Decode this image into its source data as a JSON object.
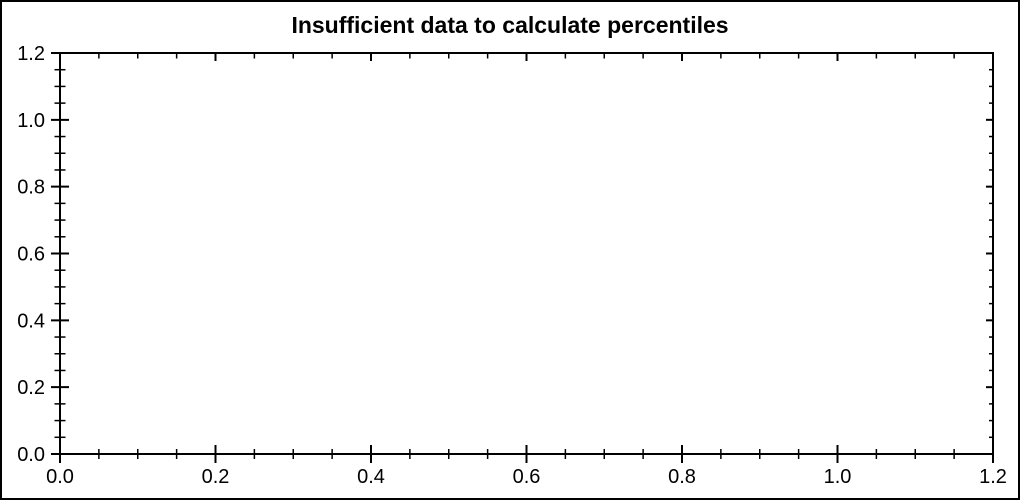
{
  "figure": {
    "background": "#ffffff",
    "border_color": "#000000"
  },
  "chart_data": {
    "type": "scatter",
    "title": "Insufficient data to calculate percentiles",
    "series": [],
    "xlabel": "",
    "ylabel": "",
    "xlim": [
      0.0,
      1.2
    ],
    "ylim": [
      0.0,
      1.2
    ],
    "x_major_ticks": [
      0.0,
      0.2,
      0.4,
      0.6,
      0.8,
      1.0,
      1.2
    ],
    "y_major_ticks": [
      0.0,
      0.2,
      0.4,
      0.6,
      0.8,
      1.0,
      1.2
    ],
    "x_tick_labels": [
      "0.0",
      "0.2",
      "0.4",
      "0.6",
      "0.8",
      "1.0",
      "1.2"
    ],
    "y_tick_labels": [
      "0.0",
      "0.2",
      "0.4",
      "0.6",
      "0.8",
      "1.0",
      "1.2"
    ],
    "minor_ticks_per_interval": 3,
    "grid": false,
    "frame": "box",
    "legend": "none",
    "axis_color": "#000000",
    "text_color": "#000000"
  }
}
